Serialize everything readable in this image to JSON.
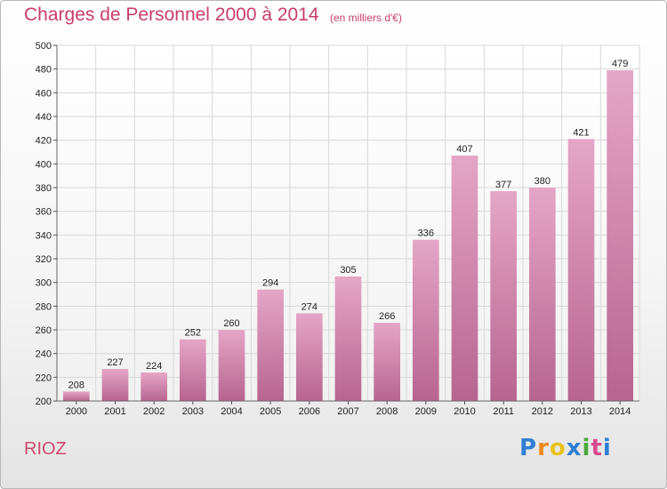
{
  "chart_data": {
    "type": "bar",
    "title": "Charges de Personnel 2000 à 2014",
    "subtitle": "(en milliers d'€)",
    "xlabel": "",
    "ylabel": "",
    "categories": [
      "2000",
      "2001",
      "2002",
      "2003",
      "2004",
      "2005",
      "2006",
      "2007",
      "2008",
      "2009",
      "2010",
      "2011",
      "2012",
      "2013",
      "2014"
    ],
    "values": [
      208,
      227,
      224,
      252,
      260,
      294,
      274,
      305,
      266,
      336,
      407,
      377,
      380,
      421,
      479
    ],
    "ylim": [
      200,
      500
    ],
    "yticks": [
      200,
      220,
      240,
      260,
      280,
      300,
      320,
      340,
      360,
      380,
      400,
      420,
      440,
      460,
      480,
      500
    ],
    "grid": true,
    "bar_color": "#d98bb0"
  },
  "footer": {
    "place": "RIOZ",
    "logo": {
      "letters": [
        "P",
        "r",
        "o",
        "x",
        "i",
        "t",
        "i"
      ],
      "colors": [
        "#2f7fd3",
        "#f08a1c",
        "#e8c31e",
        "#2f7fd3",
        "#4aa83c",
        "#d64a8c",
        "#2f7fd3"
      ]
    }
  },
  "colors": {
    "title": "#c93d6d",
    "grid": "#d8d8d8"
  }
}
